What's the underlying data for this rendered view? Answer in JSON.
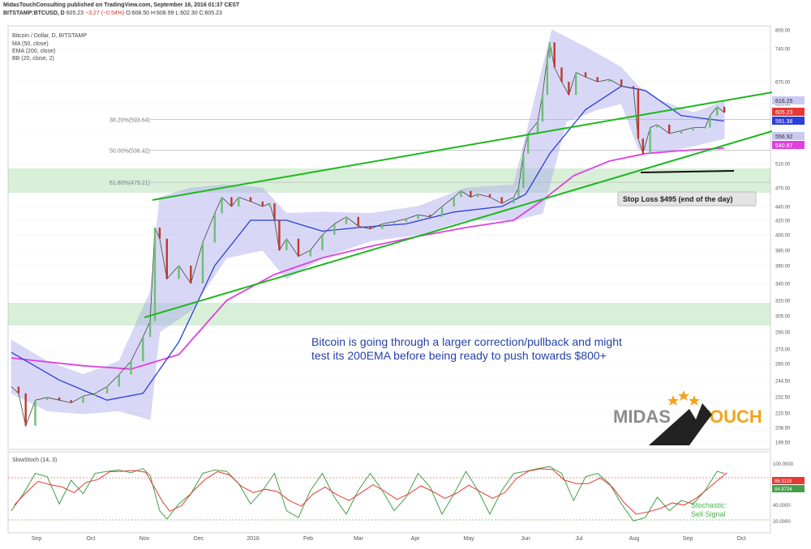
{
  "header": {
    "published_line": "MidasTouchConsulting published on TradingView.com, September 16, 2016 01:37 CEST",
    "symbol": "BITSTAMP:BTCUSD, D",
    "price": "605.23",
    "change": "−3.27 (−0.54%)",
    "ohlc": "O:608.50 H:608.99 L:602.30 C:605.23"
  },
  "legend": {
    "title": "Bitcoin / Dollar, D, BITSTAMP",
    "items": [
      "MA (50, close)",
      "EMA (200, close)",
      "BB (20, close, 2)"
    ]
  },
  "fib": [
    {
      "label": "38.20%(593.64)",
      "value": 593.64
    },
    {
      "label": "50.00%(536.42)",
      "value": 536.42
    },
    {
      "label": "61.80%(479.21)",
      "value": 479.21
    }
  ],
  "annotations": {
    "main_text_line1": "Bitcoin is going through a larger correction/pullback and might",
    "main_text_line2": "test its 200EMA before being ready to push towards $800+",
    "stop_loss": "Stop Loss $495 (end of the day)",
    "stoch_note_line1": "Stochastic:",
    "stoch_note_line2": "Sell Signal"
  },
  "logo": {
    "word1": "MIDAS",
    "word2": "TOUCH"
  },
  "price_badges": {
    "top": "616.25",
    "last": "605.23",
    "ma": "591.38",
    "bb_low": "556.92",
    "ema": "540.87"
  },
  "stoch_panel": {
    "title": "SlowStoch (14, 3)",
    "badge1": "86.3119",
    "badge2": "84.8734",
    "levels": [
      "100.0000",
      "80.0000",
      "40.0000",
      "20.0000"
    ]
  },
  "chart_data": {
    "type": "line",
    "y_ticks": [
      "800.00",
      "740.00",
      "670.00",
      "620.00",
      "570.00",
      "510.00",
      "470.00",
      "440.00",
      "420.00",
      "400.00",
      "380.00",
      "360.00",
      "340.00",
      "320.00",
      "305.00",
      "290.00",
      "273.00",
      "260.00",
      "244.50",
      "232.50",
      "220.50",
      "208.50",
      "199.50"
    ],
    "x_ticks": [
      "Sep",
      "Oct",
      "Nov",
      "Dec",
      "2016",
      "Feb",
      "Mar",
      "Apr",
      "May",
      "Jun",
      "Jul",
      "Aug",
      "Sep",
      "Oct"
    ],
    "price_close": [
      [
        0,
        240
      ],
      [
        3,
        235
      ],
      [
        6,
        210
      ],
      [
        10,
        230
      ],
      [
        15,
        232
      ],
      [
        20,
        230
      ],
      [
        25,
        228
      ],
      [
        30,
        233
      ],
      [
        35,
        235
      ],
      [
        40,
        240
      ],
      [
        45,
        250
      ],
      [
        50,
        262
      ],
      [
        55,
        285
      ],
      [
        58,
        300
      ],
      [
        60,
        410
      ],
      [
        62,
        395
      ],
      [
        65,
        345
      ],
      [
        70,
        360
      ],
      [
        75,
        340
      ],
      [
        80,
        390
      ],
      [
        85,
        430
      ],
      [
        88,
        455
      ],
      [
        92,
        440
      ],
      [
        95,
        455
      ],
      [
        100,
        448
      ],
      [
        105,
        440
      ],
      [
        108,
        445
      ],
      [
        110,
        420
      ],
      [
        112,
        380
      ],
      [
        115,
        395
      ],
      [
        120,
        372
      ],
      [
        125,
        380
      ],
      [
        130,
        400
      ],
      [
        135,
        415
      ],
      [
        140,
        425
      ],
      [
        145,
        412
      ],
      [
        150,
        408
      ],
      [
        155,
        415
      ],
      [
        160,
        418
      ],
      [
        165,
        422
      ],
      [
        170,
        428
      ],
      [
        175,
        425
      ],
      [
        180,
        440
      ],
      [
        185,
        455
      ],
      [
        188,
        465
      ],
      [
        192,
        455
      ],
      [
        195,
        460
      ],
      [
        200,
        455
      ],
      [
        205,
        445
      ],
      [
        210,
        455
      ],
      [
        212,
        470
      ],
      [
        214,
        530
      ],
      [
        216,
        570
      ],
      [
        220,
        590
      ],
      [
        222,
        640
      ],
      [
        224,
        720
      ],
      [
        225,
        760
      ],
      [
        227,
        700
      ],
      [
        230,
        670
      ],
      [
        233,
        640
      ],
      [
        236,
        690
      ],
      [
        240,
        680
      ],
      [
        245,
        670
      ],
      [
        250,
        675
      ],
      [
        255,
        660
      ],
      [
        260,
        655
      ],
      [
        262,
        560
      ],
      [
        264,
        530
      ],
      [
        267,
        580
      ],
      [
        270,
        585
      ],
      [
        275,
        570
      ],
      [
        280,
        575
      ],
      [
        285,
        580
      ],
      [
        290,
        580
      ],
      [
        292,
        600
      ],
      [
        295,
        615
      ],
      [
        298,
        605
      ]
    ],
    "ma50": [
      [
        0,
        270
      ],
      [
        20,
        245
      ],
      [
        40,
        230
      ],
      [
        55,
        235
      ],
      [
        70,
        280
      ],
      [
        85,
        360
      ],
      [
        100,
        420
      ],
      [
        115,
        420
      ],
      [
        130,
        405
      ],
      [
        145,
        410
      ],
      [
        165,
        415
      ],
      [
        185,
        432
      ],
      [
        205,
        440
      ],
      [
        215,
        460
      ],
      [
        225,
        530
      ],
      [
        240,
        610
      ],
      [
        255,
        660
      ],
      [
        265,
        650
      ],
      [
        280,
        600
      ],
      [
        298,
        591
      ]
    ],
    "ema200": [
      [
        0,
        265
      ],
      [
        30,
        258
      ],
      [
        50,
        255
      ],
      [
        70,
        268
      ],
      [
        90,
        320
      ],
      [
        110,
        350
      ],
      [
        130,
        370
      ],
      [
        150,
        385
      ],
      [
        170,
        398
      ],
      [
        190,
        410
      ],
      [
        210,
        420
      ],
      [
        222,
        450
      ],
      [
        235,
        490
      ],
      [
        250,
        515
      ],
      [
        265,
        530
      ],
      [
        280,
        536
      ],
      [
        298,
        541
      ]
    ],
    "bb_upper": [
      [
        0,
        282
      ],
      [
        15,
        262
      ],
      [
        30,
        250
      ],
      [
        45,
        262
      ],
      [
        58,
        330
      ],
      [
        62,
        455
      ],
      [
        75,
        470
      ],
      [
        90,
        475
      ],
      [
        105,
        470
      ],
      [
        115,
        430
      ],
      [
        130,
        432
      ],
      [
        150,
        430
      ],
      [
        170,
        440
      ],
      [
        190,
        470
      ],
      [
        210,
        475
      ],
      [
        222,
        700
      ],
      [
        226,
        800
      ],
      [
        240,
        745
      ],
      [
        255,
        700
      ],
      [
        262,
        660
      ],
      [
        270,
        630
      ],
      [
        285,
        605
      ],
      [
        298,
        625
      ]
    ],
    "bb_lower": [
      [
        0,
        235
      ],
      [
        15,
        222
      ],
      [
        30,
        220
      ],
      [
        45,
        222
      ],
      [
        58,
        215
      ],
      [
        62,
        290
      ],
      [
        75,
        310
      ],
      [
        90,
        370
      ],
      [
        105,
        380
      ],
      [
        115,
        345
      ],
      [
        130,
        370
      ],
      [
        150,
        392
      ],
      [
        170,
        400
      ],
      [
        190,
        420
      ],
      [
        210,
        420
      ],
      [
        222,
        430
      ],
      [
        232,
        590
      ],
      [
        245,
        610
      ],
      [
        255,
        620
      ],
      [
        262,
        540
      ],
      [
        270,
        530
      ],
      [
        285,
        545
      ],
      [
        298,
        560
      ]
    ],
    "stochastic": {
      "k": [
        [
          0,
          30
        ],
        [
          5,
          55
        ],
        [
          10,
          85
        ],
        [
          15,
          80
        ],
        [
          20,
          40
        ],
        [
          25,
          75
        ],
        [
          30,
          55
        ],
        [
          35,
          85
        ],
        [
          40,
          88
        ],
        [
          45,
          90
        ],
        [
          50,
          86
        ],
        [
          55,
          92
        ],
        [
          58,
          82
        ],
        [
          62,
          30
        ],
        [
          65,
          18
        ],
        [
          70,
          40
        ],
        [
          75,
          55
        ],
        [
          80,
          85
        ],
        [
          85,
          90
        ],
        [
          90,
          88
        ],
        [
          95,
          70
        ],
        [
          100,
          40
        ],
        [
          105,
          60
        ],
        [
          110,
          85
        ],
        [
          115,
          30
        ],
        [
          120,
          20
        ],
        [
          125,
          60
        ],
        [
          130,
          85
        ],
        [
          135,
          50
        ],
        [
          140,
          25
        ],
        [
          145,
          60
        ],
        [
          150,
          85
        ],
        [
          155,
          60
        ],
        [
          160,
          30
        ],
        [
          165,
          50
        ],
        [
          170,
          85
        ],
        [
          175,
          65
        ],
        [
          180,
          25
        ],
        [
          185,
          55
        ],
        [
          190,
          88
        ],
        [
          195,
          60
        ],
        [
          200,
          25
        ],
        [
          205,
          60
        ],
        [
          210,
          85
        ],
        [
          215,
          88
        ],
        [
          220,
          92
        ],
        [
          225,
          95
        ],
        [
          230,
          85
        ],
        [
          235,
          45
        ],
        [
          240,
          80
        ],
        [
          245,
          85
        ],
        [
          250,
          70
        ],
        [
          255,
          40
        ],
        [
          260,
          15
        ],
        [
          265,
          20
        ],
        [
          270,
          50
        ],
        [
          275,
          30
        ],
        [
          280,
          45
        ],
        [
          285,
          40
        ],
        [
          290,
          60
        ],
        [
          295,
          88
        ],
        [
          298,
          85
        ]
      ],
      "overbought": 80,
      "oversold": 20
    }
  }
}
